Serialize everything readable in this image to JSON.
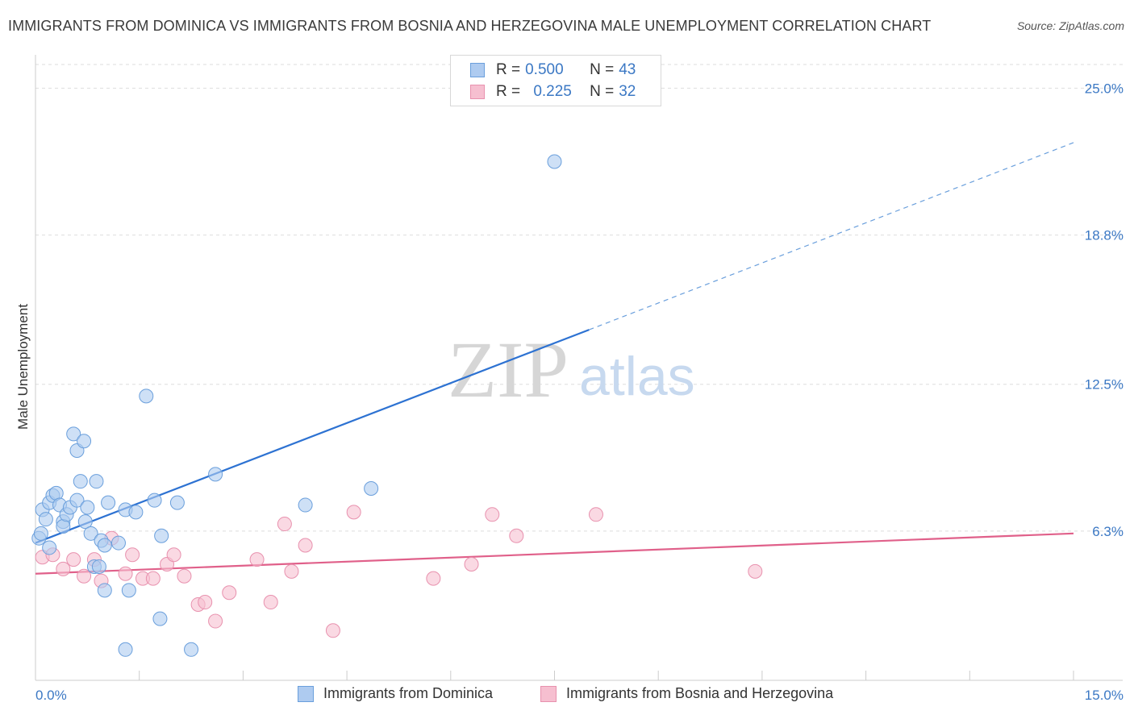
{
  "header": {
    "title": "IMMIGRANTS FROM DOMINICA VS IMMIGRANTS FROM BOSNIA AND HERZEGOVINA MALE UNEMPLOYMENT CORRELATION CHART",
    "source": "Source: ZipAtlas.com"
  },
  "watermark": {
    "zip": "ZIP",
    "atlas": "atlas"
  },
  "legend": {
    "series1": {
      "r_label": "R =",
      "r_value": "0.500",
      "n_label": "N =",
      "n_value": "43"
    },
    "series2": {
      "r_label": "R =",
      "r_value": "0.225",
      "n_label": "N =",
      "n_value": "32"
    }
  },
  "colors": {
    "blue_fill": "#aecbf0",
    "blue_stroke": "#6a9fdc",
    "blue_line": "#2d72d2",
    "pink_fill": "#f6bfd0",
    "pink_stroke": "#e891ae",
    "pink_line": "#e0608a",
    "grid": "#dddddd",
    "tick_text": "#3b78c4"
  },
  "chart_data": {
    "type": "scatter",
    "title": "IMMIGRANTS FROM DOMINICA VS IMMIGRANTS FROM BOSNIA AND HERZEGOVINA MALE UNEMPLOYMENT CORRELATION CHART",
    "xlabel": "",
    "ylabel": "Male Unemployment",
    "xlim": [
      0,
      15
    ],
    "ylim": [
      0,
      26
    ],
    "x_tick_labels": {
      "min": "0.0%",
      "max": "15.0%"
    },
    "y_ticks": [
      {
        "value": 6.3,
        "label": "6.3%"
      },
      {
        "value": 12.5,
        "label": "12.5%"
      },
      {
        "value": 18.8,
        "label": "18.8%"
      },
      {
        "value": 25.0,
        "label": "25.0%"
      }
    ],
    "series": [
      {
        "name": "Immigrants from Dominica",
        "color": "blue",
        "points": [
          [
            0.05,
            6.0
          ],
          [
            0.08,
            6.2
          ],
          [
            0.1,
            7.2
          ],
          [
            0.15,
            6.8
          ],
          [
            0.2,
            7.5
          ],
          [
            0.2,
            5.6
          ],
          [
            0.25,
            7.8
          ],
          [
            0.3,
            7.9
          ],
          [
            0.35,
            7.4
          ],
          [
            0.4,
            6.7
          ],
          [
            0.4,
            6.5
          ],
          [
            0.45,
            7.0
          ],
          [
            0.5,
            7.3
          ],
          [
            0.55,
            10.4
          ],
          [
            0.6,
            7.6
          ],
          [
            0.6,
            9.7
          ],
          [
            0.65,
            8.4
          ],
          [
            0.7,
            10.1
          ],
          [
            0.72,
            6.7
          ],
          [
            0.75,
            7.3
          ],
          [
            0.8,
            6.2
          ],
          [
            0.85,
            4.8
          ],
          [
            0.88,
            8.4
          ],
          [
            0.92,
            4.8
          ],
          [
            0.95,
            5.9
          ],
          [
            1.0,
            5.7
          ],
          [
            1.0,
            3.8
          ],
          [
            1.05,
            7.5
          ],
          [
            1.2,
            5.8
          ],
          [
            1.3,
            7.2
          ],
          [
            1.35,
            3.8
          ],
          [
            1.45,
            7.1
          ],
          [
            1.6,
            12.0
          ],
          [
            1.72,
            7.6
          ],
          [
            1.8,
            2.6
          ],
          [
            1.82,
            6.1
          ],
          [
            2.05,
            7.5
          ],
          [
            2.25,
            1.3
          ],
          [
            2.6,
            8.7
          ],
          [
            3.9,
            7.4
          ],
          [
            4.85,
            8.1
          ],
          [
            1.3,
            1.3
          ],
          [
            7.5,
            21.9
          ]
        ],
        "trend": {
          "x0": 0,
          "y0": 5.8,
          "x1": 8.0,
          "y1": 14.8,
          "dash_to_x": 15.0,
          "dash_to_y": 22.7
        }
      },
      {
        "name": "Immigrants from Bosnia and Herzegovina",
        "color": "pink",
        "points": [
          [
            0.1,
            5.2
          ],
          [
            0.25,
            5.3
          ],
          [
            0.4,
            4.7
          ],
          [
            0.55,
            5.1
          ],
          [
            0.7,
            4.4
          ],
          [
            0.85,
            5.1
          ],
          [
            0.95,
            4.2
          ],
          [
            1.1,
            6.0
          ],
          [
            1.3,
            4.5
          ],
          [
            1.4,
            5.3
          ],
          [
            1.55,
            4.3
          ],
          [
            1.7,
            4.3
          ],
          [
            1.9,
            4.9
          ],
          [
            2.0,
            5.3
          ],
          [
            2.15,
            4.4
          ],
          [
            2.35,
            3.2
          ],
          [
            2.45,
            3.3
          ],
          [
            2.6,
            2.5
          ],
          [
            2.8,
            3.7
          ],
          [
            3.2,
            5.1
          ],
          [
            3.4,
            3.3
          ],
          [
            3.6,
            6.6
          ],
          [
            3.7,
            4.6
          ],
          [
            3.9,
            5.7
          ],
          [
            4.3,
            2.1
          ],
          [
            4.6,
            7.1
          ],
          [
            5.75,
            4.3
          ],
          [
            6.3,
            4.9
          ],
          [
            6.6,
            7.0
          ],
          [
            6.95,
            6.1
          ],
          [
            8.1,
            7.0
          ],
          [
            10.4,
            4.6
          ]
        ],
        "trend": {
          "x0": 0,
          "y0": 4.5,
          "x1": 15.0,
          "y1": 6.2
        }
      }
    ]
  },
  "bottom_legend": {
    "item1": "Immigrants from Dominica",
    "item2": "Immigrants from Bosnia and Herzegovina"
  }
}
